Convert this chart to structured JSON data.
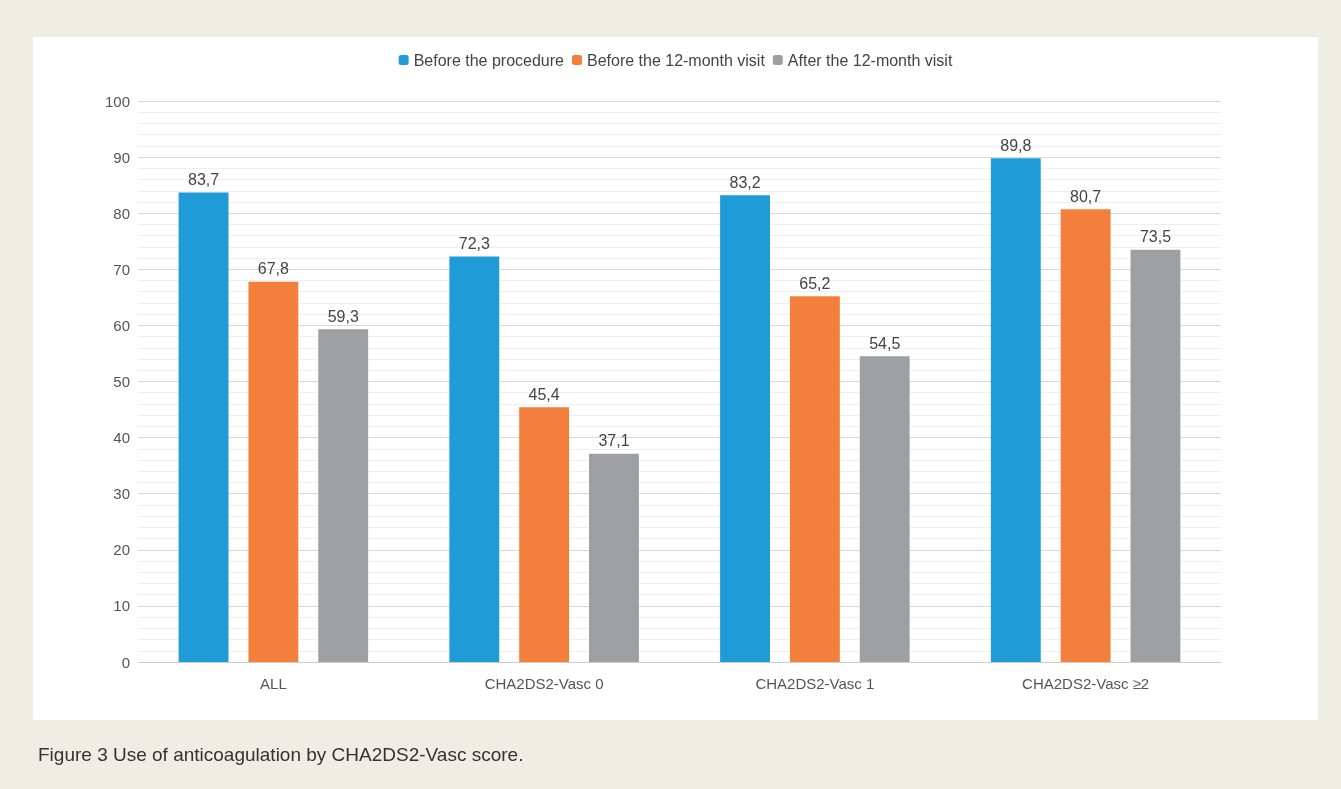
{
  "chart_data": {
    "type": "bar",
    "categories": [
      "ALL",
      "CHA2DS2-Vasc 0",
      "CHA2DS2-Vasc 1",
      "CHA2DS2-Vasc ≥2"
    ],
    "series": [
      {
        "name": "Before the procedure",
        "color": "#1f9bd7",
        "values": [
          83.7,
          72.3,
          83.2,
          89.8
        ],
        "value_labels": [
          "83,7",
          "72,3",
          "83,2",
          "89,8"
        ]
      },
      {
        "name": "Before the 12-month visit",
        "color": "#f47f3c",
        "values": [
          67.8,
          45.4,
          65.2,
          80.7
        ],
        "value_labels": [
          "67,8",
          "45,4",
          "65,2",
          "80,7"
        ]
      },
      {
        "name": "After the 12-month visit",
        "color": "#9d9fa2",
        "values": [
          59.3,
          37.1,
          54.5,
          73.5
        ],
        "value_labels": [
          "59,3",
          "37,1",
          "54,5",
          "73,5"
        ]
      }
    ],
    "ylim": [
      0,
      100
    ],
    "yticks": [
      0,
      10,
      20,
      30,
      40,
      50,
      60,
      70,
      80,
      90,
      100
    ],
    "grid": "y",
    "legend": "top",
    "annotations": [
      "Figure 3  Use of anticoagulation by CHA2DS2-Vasc score."
    ]
  }
}
